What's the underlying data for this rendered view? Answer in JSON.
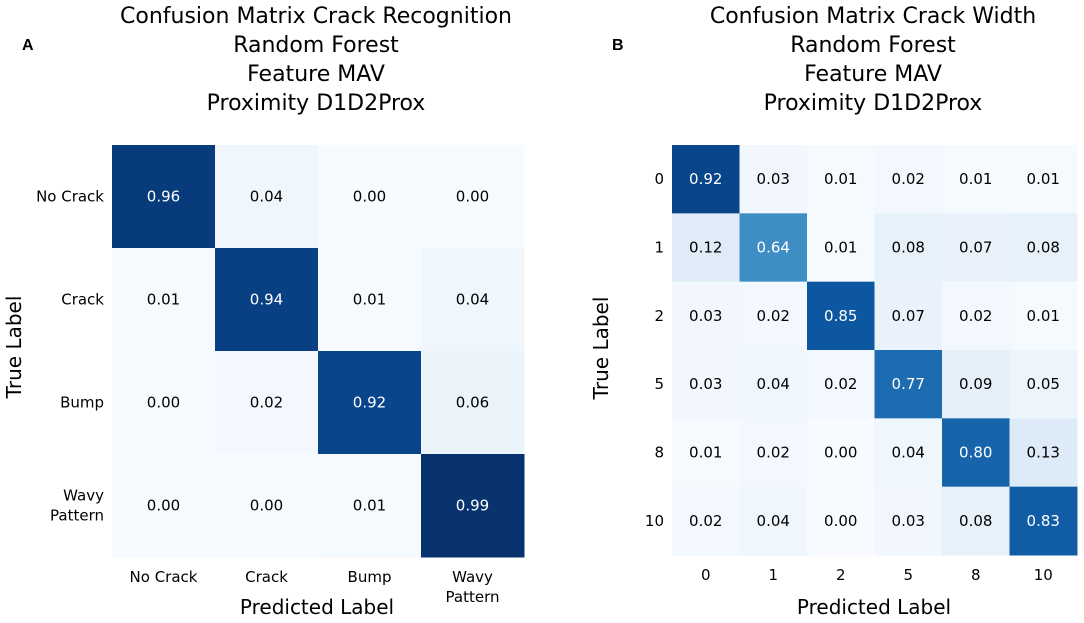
{
  "chart_data": [
    {
      "type": "heatmap",
      "panel": "A",
      "title": [
        "Confusion Matrix Crack Recognition",
        "Random Forest",
        "Feature MAV",
        "Proximity D1D2Prox"
      ],
      "xlabel": "Predicted Label",
      "ylabel": "True Label",
      "row_labels": [
        [
          "No Crack"
        ],
        [
          "Crack"
        ],
        [
          "Bump"
        ],
        [
          "Wavy",
          "Pattern"
        ]
      ],
      "col_labels": [
        [
          "No Crack"
        ],
        [
          "Crack"
        ],
        [
          "Bump"
        ],
        [
          "Wavy",
          "Pattern"
        ]
      ],
      "values": [
        [
          0.96,
          0.04,
          0.0,
          0.0
        ],
        [
          0.01,
          0.94,
          0.01,
          0.04
        ],
        [
          0.0,
          0.02,
          0.92,
          0.06
        ],
        [
          0.0,
          0.0,
          0.01,
          0.99
        ]
      ],
      "colormap": "Blues",
      "vmin": 0,
      "vmax": 1
    },
    {
      "type": "heatmap",
      "panel": "B",
      "title": [
        "Confusion Matrix Crack Width",
        "Random Forest",
        "Feature MAV",
        "Proximity D1D2Prox"
      ],
      "xlabel": "Predicted Label",
      "ylabel": "True Label",
      "row_labels": [
        [
          "0"
        ],
        [
          "1"
        ],
        [
          "2"
        ],
        [
          "5"
        ],
        [
          "8"
        ],
        [
          "10"
        ]
      ],
      "col_labels": [
        [
          "0"
        ],
        [
          "1"
        ],
        [
          "2"
        ],
        [
          "5"
        ],
        [
          "8"
        ],
        [
          "10"
        ]
      ],
      "values": [
        [
          0.92,
          0.03,
          0.01,
          0.02,
          0.01,
          0.01
        ],
        [
          0.12,
          0.64,
          0.01,
          0.08,
          0.07,
          0.08
        ],
        [
          0.03,
          0.02,
          0.85,
          0.07,
          0.02,
          0.01
        ],
        [
          0.03,
          0.04,
          0.02,
          0.77,
          0.09,
          0.05
        ],
        [
          0.01,
          0.02,
          0.0,
          0.04,
          0.8,
          0.13
        ],
        [
          0.02,
          0.04,
          0.0,
          0.03,
          0.08,
          0.83
        ]
      ],
      "colormap": "Blues",
      "vmin": 0,
      "vmax": 1
    }
  ]
}
